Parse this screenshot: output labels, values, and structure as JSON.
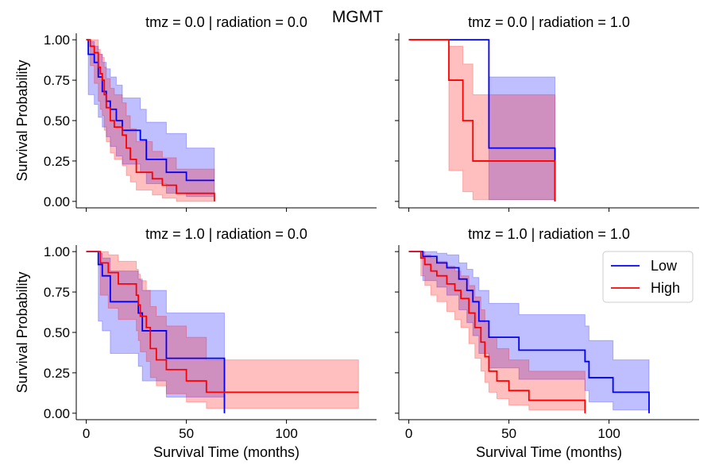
{
  "figure": {
    "suptitle": "MGMT",
    "colors": {
      "Low": "#0000ff",
      "High": "#ff0000"
    }
  },
  "chart_data": [
    {
      "type": "line",
      "title": "tmz = 0.0 | radiation = 0.0",
      "xlabel": "",
      "ylabel": "Survival Probability",
      "xlim": [
        -5,
        145
      ],
      "ylim": [
        -0.04,
        1.04
      ],
      "xticks": [
        0,
        50,
        100
      ],
      "xtick_labels": [
        "",
        "",
        ""
      ],
      "yticks": [
        0,
        0.25,
        0.5,
        0.75,
        1.0
      ],
      "ytick_labels": [
        "0.00",
        "0.25",
        "0.50",
        "0.75",
        "1.00"
      ],
      "legend": false,
      "series": [
        {
          "name": "Low",
          "color": "#0000ff",
          "x": [
            0,
            1,
            4,
            6,
            8,
            10,
            12,
            15,
            18,
            27,
            30,
            40,
            50,
            64
          ],
          "y": [
            1.0,
            0.91,
            0.86,
            0.77,
            0.68,
            0.62,
            0.57,
            0.5,
            0.44,
            0.38,
            0.26,
            0.18,
            0.13,
            0.13
          ],
          "ci_lower": [
            1.0,
            0.66,
            0.6,
            0.52,
            0.46,
            0.4,
            0.34,
            0.28,
            0.23,
            0.18,
            0.11,
            0.05,
            0.03,
            0.03
          ],
          "ci_upper": [
            1.0,
            0.99,
            0.96,
            0.91,
            0.86,
            0.82,
            0.77,
            0.72,
            0.64,
            0.57,
            0.49,
            0.42,
            0.33,
            0.33
          ]
        },
        {
          "name": "High",
          "color": "#ff0000",
          "x": [
            0,
            2,
            4,
            6,
            7,
            8,
            9,
            10,
            12,
            14,
            18,
            20,
            22,
            25,
            33,
            38,
            45,
            64
          ],
          "y": [
            1.0,
            0.96,
            0.92,
            0.83,
            0.79,
            0.75,
            0.66,
            0.58,
            0.5,
            0.46,
            0.41,
            0.33,
            0.26,
            0.18,
            0.14,
            0.1,
            0.05,
            0.0
          ],
          "ci_lower": [
            1.0,
            0.84,
            0.73,
            0.62,
            0.57,
            0.53,
            0.44,
            0.37,
            0.3,
            0.26,
            0.22,
            0.16,
            0.12,
            0.07,
            0.04,
            0.02,
            0.0,
            0.0
          ],
          "ci_upper": [
            1.0,
            1.0,
            1.0,
            0.94,
            0.91,
            0.89,
            0.83,
            0.76,
            0.7,
            0.66,
            0.61,
            0.53,
            0.45,
            0.37,
            0.31,
            0.27,
            0.2,
            0.0
          ]
        }
      ]
    },
    {
      "type": "line",
      "title": "tmz = 0.0 | radiation = 1.0",
      "xlabel": "",
      "ylabel": "",
      "xlim": [
        -5,
        145
      ],
      "ylim": [
        -0.04,
        1.04
      ],
      "xticks": [
        0,
        50,
        100
      ],
      "xtick_labels": [
        "",
        "",
        ""
      ],
      "yticks": [
        0,
        0.25,
        0.5,
        0.75,
        1.0
      ],
      "ytick_labels": [
        "",
        "",
        "",
        "",
        ""
      ],
      "legend": false,
      "series": [
        {
          "name": "Low",
          "color": "#0000ff",
          "x": [
            0,
            40,
            73
          ],
          "y": [
            1.0,
            0.33,
            0.0
          ],
          "ci_lower": [
            1.0,
            0.01,
            0.0
          ],
          "ci_upper": [
            1.0,
            0.77,
            0.0
          ]
        },
        {
          "name": "High",
          "color": "#ff0000",
          "x": [
            0,
            20,
            27,
            32,
            73
          ],
          "y": [
            1.0,
            0.75,
            0.5,
            0.25,
            0.0
          ],
          "ci_lower": [
            1.0,
            0.19,
            0.06,
            0.01,
            0.0
          ],
          "ci_upper": [
            1.0,
            0.96,
            0.85,
            0.66,
            0.0
          ]
        }
      ]
    },
    {
      "type": "line",
      "title": "tmz = 1.0 | radiation = 0.0",
      "xlabel": "Survival Time (months)",
      "ylabel": "Survival Probability",
      "xlim": [
        -5,
        145
      ],
      "ylim": [
        -0.04,
        1.04
      ],
      "xticks": [
        0,
        50,
        100
      ],
      "xtick_labels": [
        "0",
        "50",
        "100"
      ],
      "yticks": [
        0,
        0.25,
        0.5,
        0.75,
        1.0
      ],
      "ytick_labels": [
        "0.00",
        "0.25",
        "0.50",
        "0.75",
        "1.00"
      ],
      "legend": false,
      "series": [
        {
          "name": "Low",
          "color": "#0000ff",
          "x": [
            0,
            6,
            8,
            12,
            26,
            28,
            40,
            69
          ],
          "y": [
            1.0,
            0.92,
            0.85,
            0.69,
            0.62,
            0.51,
            0.34,
            0.0
          ],
          "ci_lower": [
            1.0,
            0.57,
            0.51,
            0.37,
            0.29,
            0.2,
            0.1,
            0.0
          ],
          "ci_upper": [
            1.0,
            0.99,
            0.96,
            0.88,
            0.83,
            0.76,
            0.62,
            0.0
          ]
        },
        {
          "name": "High",
          "color": "#ff0000",
          "x": [
            0,
            7,
            11,
            16,
            25,
            26,
            27,
            30,
            32,
            35,
            40,
            50,
            60,
            69
          ],
          "y": [
            1.0,
            0.93,
            0.87,
            0.8,
            0.73,
            0.67,
            0.6,
            0.53,
            0.4,
            0.33,
            0.27,
            0.2,
            0.13,
            0.13
          ],
          "ci_lower": [
            1.0,
            0.73,
            0.65,
            0.58,
            0.51,
            0.45,
            0.38,
            0.32,
            0.22,
            0.17,
            0.12,
            0.07,
            0.03,
            0.03
          ],
          "ci_upper": [
            1.0,
            1.0,
            0.98,
            0.94,
            0.89,
            0.86,
            0.82,
            0.76,
            0.66,
            0.6,
            0.54,
            0.47,
            0.33,
            0.33
          ],
          "end_x": 136
        }
      ]
    },
    {
      "type": "line",
      "title": "tmz = 1.0 | radiation = 1.0",
      "xlabel": "Survival Time (months)",
      "ylabel": "",
      "xlim": [
        -5,
        145
      ],
      "ylim": [
        -0.04,
        1.04
      ],
      "xticks": [
        0,
        50,
        100
      ],
      "xtick_labels": [
        "0",
        "50",
        "100"
      ],
      "yticks": [
        0,
        0.25,
        0.5,
        0.75,
        1.0
      ],
      "ytick_labels": [
        "",
        "",
        "",
        "",
        ""
      ],
      "legend": true,
      "legend_loc": "upper right",
      "series": [
        {
          "name": "Low",
          "color": "#0000ff",
          "x": [
            0,
            7,
            14,
            19,
            25,
            29,
            32,
            35,
            40,
            55,
            88,
            90,
            102,
            120
          ],
          "y": [
            1.0,
            0.97,
            0.93,
            0.9,
            0.83,
            0.76,
            0.69,
            0.57,
            0.47,
            0.39,
            0.32,
            0.22,
            0.13,
            0.0
          ],
          "ci_lower": [
            1.0,
            0.82,
            0.78,
            0.73,
            0.64,
            0.56,
            0.48,
            0.37,
            0.28,
            0.21,
            0.14,
            0.07,
            0.02,
            0.0
          ],
          "ci_upper": [
            1.0,
            1.0,
            0.99,
            0.98,
            0.93,
            0.89,
            0.84,
            0.76,
            0.68,
            0.61,
            0.54,
            0.45,
            0.33,
            0.0
          ]
        },
        {
          "name": "High",
          "color": "#ff0000",
          "x": [
            0,
            6,
            8,
            11,
            14,
            19,
            23,
            26,
            30,
            33,
            36,
            38,
            40,
            44,
            50,
            60,
            70,
            88
          ],
          "y": [
            1.0,
            0.96,
            0.92,
            0.88,
            0.85,
            0.8,
            0.76,
            0.71,
            0.62,
            0.53,
            0.44,
            0.35,
            0.26,
            0.2,
            0.14,
            0.08,
            0.08,
            0.0
          ],
          "ci_lower": [
            1.0,
            0.85,
            0.79,
            0.73,
            0.69,
            0.63,
            0.58,
            0.53,
            0.43,
            0.34,
            0.26,
            0.19,
            0.13,
            0.09,
            0.05,
            0.02,
            0.02,
            0.0
          ],
          "ci_upper": [
            1.0,
            1.0,
            0.98,
            0.96,
            0.94,
            0.91,
            0.88,
            0.85,
            0.79,
            0.72,
            0.64,
            0.56,
            0.47,
            0.4,
            0.33,
            0.26,
            0.26,
            0.0
          ]
        }
      ]
    }
  ]
}
